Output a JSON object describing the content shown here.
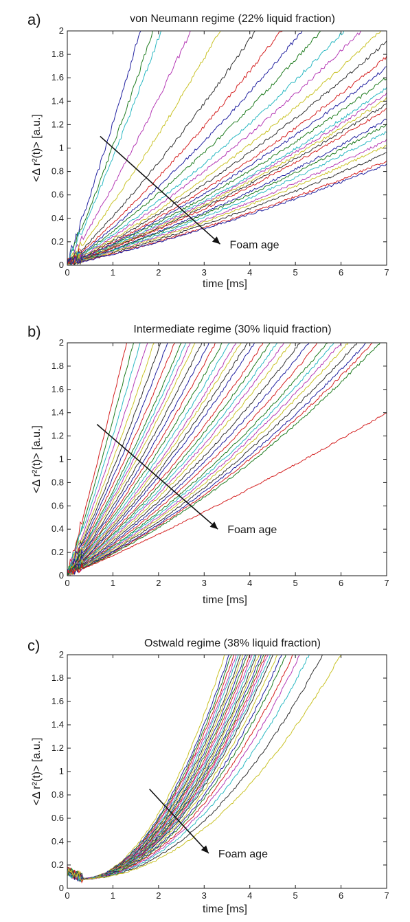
{
  "chart_data": [
    {
      "type": "line",
      "panel_label": "a)",
      "title": "von Neumann regime (22% liquid fraction)",
      "xlabel": "time [ms]",
      "ylabel": "<Δ r²(t)> [a.u.]",
      "xlim": [
        0,
        7
      ],
      "ylim": [
        0,
        2
      ],
      "xticks": [
        "0",
        "1",
        "2",
        "3",
        "4",
        "5",
        "6",
        "7"
      ],
      "yticks": [
        "0",
        "0.2",
        "0.4",
        "0.6",
        "0.8",
        "1",
        "1.2",
        "1.4",
        "1.6",
        "1.8",
        "2"
      ],
      "grid": false,
      "annotation": "Foam age",
      "arrow": {
        "from": [
          0.72,
          1.1
        ],
        "to": [
          3.35,
          0.18
        ]
      },
      "curve_model": "y = a*t + b*t^2 (slope of curves at t≈7 ms)",
      "curve_slopes": [
        1.25,
        1.05,
        0.95,
        0.7,
        0.55,
        0.43,
        0.37,
        0.33,
        0.3,
        0.27,
        0.25,
        0.23,
        0.215,
        0.2,
        0.19,
        0.18,
        0.17,
        0.165,
        0.16,
        0.155,
        0.15,
        0.14,
        0.135,
        0.128,
        0.12,
        0.115,
        0.108,
        0.1,
        0.097
      ],
      "series_colors": [
        "#1f1f9f",
        "#1e7b1e",
        "#2ab8c2",
        "#b53ab5",
        "#c9c226",
        "#303030",
        "#d42020"
      ]
    },
    {
      "type": "line",
      "panel_label": "b)",
      "title": "Intermediate regime (30% liquid fraction)",
      "xlabel": "time [ms]",
      "ylabel": "<Δ r²(t)> [a.u.]",
      "xlim": [
        0,
        7
      ],
      "ylim": [
        0,
        2
      ],
      "xticks": [
        "0",
        "1",
        "2",
        "3",
        "4",
        "5",
        "6",
        "7"
      ],
      "yticks": [
        "0",
        "0.2",
        "0.4",
        "0.6",
        "0.8",
        "1",
        "1.2",
        "1.4",
        "1.6",
        "1.8",
        "2"
      ],
      "grid": false,
      "annotation": "Foam age",
      "arrow": {
        "from": [
          0.65,
          1.3
        ],
        "to": [
          3.3,
          0.4
        ]
      },
      "curve_model": "y = a*t + b*t^2 (approximate times at which curves reach y = 2)",
      "curve_reach_times": [
        1.3,
        1.45,
        1.6,
        1.75,
        1.9,
        2.05,
        2.2,
        2.35,
        2.5,
        2.6,
        2.7,
        2.8,
        2.95,
        3.1,
        3.25,
        3.4,
        3.55,
        3.7,
        3.8,
        3.95,
        4.1,
        4.3,
        4.45,
        4.6,
        4.75,
        4.9,
        5.1,
        5.3,
        5.5,
        5.7,
        5.85,
        6.0,
        6.15,
        6.35,
        6.55,
        6.7,
        6.85
      ],
      "last_curve_end_value": 1.4,
      "series_colors": [
        "#d42020",
        "#1e7b1e",
        "#2ab8c2",
        "#b53ab5",
        "#c9c226",
        "#303030",
        "#1f1f9f"
      ]
    },
    {
      "type": "line",
      "panel_label": "c)",
      "title": "Ostwald regime (38% liquid fraction)",
      "xlabel": "time [ms]",
      "ylabel": "<Δ r²(t)> [a.u.]",
      "xlim": [
        0,
        7
      ],
      "ylim": [
        0,
        2
      ],
      "xticks": [
        "0",
        "1",
        "2",
        "3",
        "4",
        "5",
        "6",
        "7"
      ],
      "yticks": [
        "0",
        "0.2",
        "0.4",
        "0.6",
        "0.8",
        "1",
        "1.2",
        "1.4",
        "1.6",
        "1.8",
        "2"
      ],
      "grid": false,
      "annotation": "Foam age",
      "arrow": {
        "from": [
          1.8,
          0.85
        ],
        "to": [
          3.1,
          0.3
        ]
      },
      "curve_model": "y = c*(t - 0.3)^2 + 0.08 (approximate times at which curves reach y = 2)",
      "curve_reach_times": [
        3.45,
        3.55,
        3.6,
        3.65,
        3.7,
        3.75,
        3.8,
        3.85,
        3.9,
        3.95,
        4.0,
        4.05,
        4.1,
        4.15,
        4.2,
        4.25,
        4.3,
        4.35,
        4.4,
        4.45,
        4.5,
        4.6,
        4.7,
        4.8,
        4.95,
        5.1,
        5.3,
        5.6,
        6.0
      ],
      "series_colors": [
        "#c9c226",
        "#1f1f9f",
        "#1e7b1e",
        "#d42020",
        "#b53ab5",
        "#2ab8c2",
        "#303030"
      ]
    }
  ]
}
